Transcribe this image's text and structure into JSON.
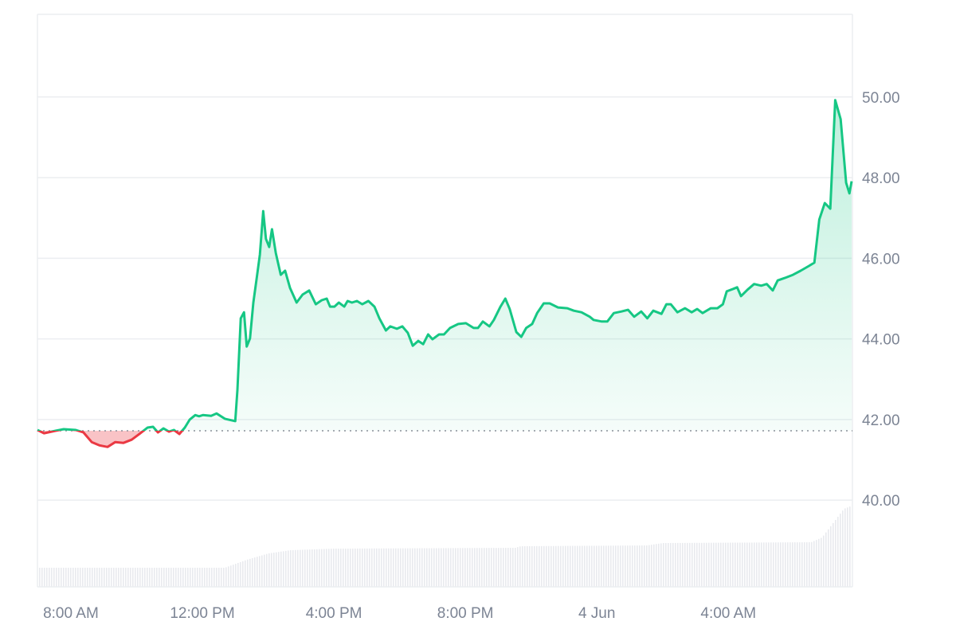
{
  "chart_data": {
    "type": "area",
    "title": "",
    "xlabel": "",
    "ylabel": "",
    "colors": {
      "up": "#16c784",
      "down": "#ea3943",
      "grid": "#eceef1",
      "volume": "#e8eaee",
      "baseline": "#8a8f98"
    },
    "grid": true,
    "ylim": [
      37.85,
      52.05
    ],
    "y_ticks": [
      "40.00",
      "42.00",
      "44.00",
      "46.00",
      "48.00",
      "50.00"
    ],
    "y_axis_position": "right",
    "x_range": [
      "06-03 06:59",
      "06-04 07:45"
    ],
    "x_ticks": [
      {
        "label": "8:00 AM",
        "time": "06-03 08:00"
      },
      {
        "label": "12:00 PM",
        "time": "06-03 12:00"
      },
      {
        "label": "4:00 PM",
        "time": "06-03 16:00"
      },
      {
        "label": "8:00 PM",
        "time": "06-03 20:00"
      },
      {
        "label": "4 Jun",
        "time": "06-04 00:00"
      },
      {
        "label": "4:00 AM",
        "time": "06-04 04:00"
      }
    ],
    "baseline_price": 41.72,
    "series": [
      {
        "points": [
          [
            "06-03 06:59",
            41.74
          ],
          [
            "06-03 07:11",
            41.66
          ],
          [
            "06-03 07:32",
            41.72
          ],
          [
            "06-03 07:47",
            41.76
          ],
          [
            "06-03 08:09",
            41.74
          ],
          [
            "06-03 08:23",
            41.68
          ],
          [
            "06-03 08:38",
            41.44
          ],
          [
            "06-03 08:52",
            41.36
          ],
          [
            "06-03 09:07",
            41.32
          ],
          [
            "06-03 09:21",
            41.44
          ],
          [
            "06-03 09:36",
            41.42
          ],
          [
            "06-03 09:51",
            41.5
          ],
          [
            "06-03 10:05",
            41.64
          ],
          [
            "06-03 10:20",
            41.8
          ],
          [
            "06-03 10:30",
            41.82
          ],
          [
            "06-03 10:39",
            41.68
          ],
          [
            "06-03 10:49",
            41.78
          ],
          [
            "06-03 10:59",
            41.7
          ],
          [
            "06-03 11:08",
            41.74
          ],
          [
            "06-03 11:18",
            41.64
          ],
          [
            "06-03 11:28",
            41.8
          ],
          [
            "06-03 11:37",
            42.0
          ],
          [
            "06-03 11:47",
            42.11
          ],
          [
            "06-03 11:54",
            42.08
          ],
          [
            "06-03 12:01",
            42.11
          ],
          [
            "06-03 12:16",
            42.09
          ],
          [
            "06-03 12:26",
            42.15
          ],
          [
            "06-03 12:41",
            42.02
          ],
          [
            "06-03 13:00",
            41.96
          ],
          [
            "06-03 13:04",
            42.73
          ],
          [
            "06-03 13:10",
            44.51
          ],
          [
            "06-03 13:16",
            44.66
          ],
          [
            "06-03 13:21",
            43.81
          ],
          [
            "06-03 13:27",
            44.01
          ],
          [
            "06-03 13:33",
            44.9
          ],
          [
            "06-03 13:39",
            45.49
          ],
          [
            "06-03 13:45",
            46.09
          ],
          [
            "06-03 13:51",
            47.17
          ],
          [
            "06-03 13:56",
            46.48
          ],
          [
            "06-03 14:02",
            46.28
          ],
          [
            "06-03 14:07",
            46.72
          ],
          [
            "06-03 14:14",
            46.13
          ],
          [
            "06-03 14:23",
            45.59
          ],
          [
            "06-03 14:31",
            45.69
          ],
          [
            "06-03 14:40",
            45.26
          ],
          [
            "06-03 14:52",
            44.9
          ],
          [
            "06-03 15:03",
            45.1
          ],
          [
            "06-03 15:15",
            45.2
          ],
          [
            "06-03 15:27",
            44.86
          ],
          [
            "06-03 15:38",
            44.96
          ],
          [
            "06-03 15:47",
            45.0
          ],
          [
            "06-03 15:53",
            44.8
          ],
          [
            "06-03 16:01",
            44.8
          ],
          [
            "06-03 16:09",
            44.9
          ],
          [
            "06-03 16:19",
            44.8
          ],
          [
            "06-03 16:25",
            44.94
          ],
          [
            "06-03 16:33",
            44.9
          ],
          [
            "06-03 16:42",
            44.94
          ],
          [
            "06-03 16:52",
            44.86
          ],
          [
            "06-03 17:03",
            44.94
          ],
          [
            "06-03 17:14",
            44.8
          ],
          [
            "06-03 17:23",
            44.51
          ],
          [
            "06-03 17:35",
            44.21
          ],
          [
            "06-03 17:43",
            44.31
          ],
          [
            "06-03 17:55",
            44.25
          ],
          [
            "06-03 18:05",
            44.31
          ],
          [
            "06-03 18:15",
            44.15
          ],
          [
            "06-03 18:24",
            43.83
          ],
          [
            "06-03 18:34",
            43.95
          ],
          [
            "06-03 18:43",
            43.87
          ],
          [
            "06-03 18:52",
            44.11
          ],
          [
            "06-03 19:00",
            43.99
          ],
          [
            "06-03 19:12",
            44.11
          ],
          [
            "06-03 19:21",
            44.11
          ],
          [
            "06-03 19:32",
            44.27
          ],
          [
            "06-03 19:47",
            44.37
          ],
          [
            "06-03 20:01",
            44.39
          ],
          [
            "06-03 20:15",
            44.27
          ],
          [
            "06-03 20:23",
            44.27
          ],
          [
            "06-03 20:32",
            44.43
          ],
          [
            "06-03 20:44",
            44.31
          ],
          [
            "06-03 20:52",
            44.47
          ],
          [
            "06-03 21:04",
            44.8
          ],
          [
            "06-03 21:13",
            45.0
          ],
          [
            "06-03 21:21",
            44.74
          ],
          [
            "06-03 21:33",
            44.17
          ],
          [
            "06-03 21:42",
            44.05
          ],
          [
            "06-03 21:51",
            44.27
          ],
          [
            "06-03 22:02",
            44.37
          ],
          [
            "06-03 22:11",
            44.64
          ],
          [
            "06-03 22:23",
            44.88
          ],
          [
            "06-03 22:34",
            44.88
          ],
          [
            "06-03 22:49",
            44.78
          ],
          [
            "06-03 23:06",
            44.76
          ],
          [
            "06-03 23:18",
            44.7
          ],
          [
            "06-03 23:32",
            44.66
          ],
          [
            "06-03 23:47",
            44.55
          ],
          [
            "06-03 23:54",
            44.47
          ],
          [
            "06-04 00:09",
            44.43
          ],
          [
            "06-04 00:19",
            44.43
          ],
          [
            "06-04 00:31",
            44.64
          ],
          [
            "06-04 00:45",
            44.68
          ],
          [
            "06-04 00:57",
            44.72
          ],
          [
            "06-04 01:08",
            44.55
          ],
          [
            "06-04 01:21",
            44.68
          ],
          [
            "06-04 01:32",
            44.51
          ],
          [
            "06-04 01:43",
            44.7
          ],
          [
            "06-04 01:58",
            44.62
          ],
          [
            "06-04 02:07",
            44.86
          ],
          [
            "06-04 02:15",
            44.86
          ],
          [
            "06-04 02:27",
            44.66
          ],
          [
            "06-04 02:41",
            44.76
          ],
          [
            "06-04 02:53",
            44.66
          ],
          [
            "06-04 03:03",
            44.74
          ],
          [
            "06-04 03:13",
            44.64
          ],
          [
            "06-04 03:28",
            44.76
          ],
          [
            "06-04 03:40",
            44.76
          ],
          [
            "06-04 03:50",
            44.86
          ],
          [
            "06-04 03:57",
            45.18
          ],
          [
            "06-04 04:09",
            45.24
          ],
          [
            "06-04 04:16",
            45.28
          ],
          [
            "06-04 04:23",
            45.06
          ],
          [
            "06-04 04:35",
            45.22
          ],
          [
            "06-04 04:47",
            45.36
          ],
          [
            "06-04 05:00",
            45.32
          ],
          [
            "06-04 05:10",
            45.36
          ],
          [
            "06-04 05:21",
            45.2
          ],
          [
            "06-04 05:30",
            45.45
          ],
          [
            "06-04 05:43",
            45.51
          ],
          [
            "06-04 05:58",
            45.59
          ],
          [
            "06-04 06:12",
            45.69
          ],
          [
            "06-04 06:27",
            45.81
          ],
          [
            "06-04 06:37",
            45.89
          ],
          [
            "06-04 06:46",
            46.96
          ],
          [
            "06-04 06:56",
            47.37
          ],
          [
            "06-04 07:06",
            47.23
          ],
          [
            "06-04 07:15",
            49.92
          ],
          [
            "06-04 07:25",
            49.45
          ],
          [
            "06-04 07:35",
            47.87
          ],
          [
            "06-04 07:41",
            47.61
          ],
          [
            "06-04 07:45",
            47.91
          ]
        ]
      }
    ],
    "volume_relative": [
      [
        "06-03 06:59",
        24
      ],
      [
        "06-03 12:40",
        24
      ],
      [
        "06-03 13:20",
        34
      ],
      [
        "06-03 14:00",
        42
      ],
      [
        "06-03 14:40",
        46
      ],
      [
        "06-03 16:00",
        48
      ],
      [
        "06-03 21:30",
        49
      ],
      [
        "06-03 21:40",
        51
      ],
      [
        "06-04 01:30",
        52
      ],
      [
        "06-04 02:00",
        55
      ],
      [
        "06-04 06:30",
        56
      ],
      [
        "06-04 06:50",
        62
      ],
      [
        "06-04 07:10",
        80
      ],
      [
        "06-04 07:30",
        98
      ],
      [
        "06-04 07:45",
        102
      ]
    ]
  }
}
